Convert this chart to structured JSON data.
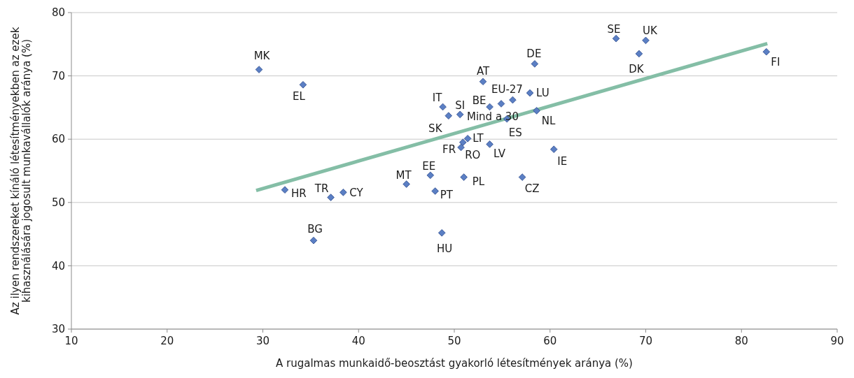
{
  "chart_data": {
    "type": "scatter",
    "xlabel": "A rugalmas munkaidő-beosztást gyakorló létesítmények aránya (%)",
    "ylabel": "Az ilyen rendszereket kínáló létesítményekben az ezek kihasználására jogosult munkavállalók aránya (%)",
    "xlim": [
      10,
      90
    ],
    "xticks": [
      10,
      20,
      30,
      40,
      50,
      60,
      70,
      80,
      90
    ],
    "ylim": [
      30,
      80
    ],
    "yticks": [
      30,
      40,
      50,
      60,
      70,
      80
    ],
    "grid": "y",
    "marker": "diamond",
    "series": [
      {
        "color": "#5b7fc4",
        "x": [
          29.6,
          34.2,
          32.3,
          37.1,
          38.4,
          35.3,
          45.0,
          47.5,
          48.0,
          48.7,
          51.0,
          48.8,
          49.4,
          50.6,
          53.7,
          54.9,
          56.1,
          55.5,
          57.9,
          58.6,
          58.4,
          51.4,
          50.9,
          50.7,
          53.7,
          60.4,
          57.1,
          66.9,
          70.0,
          69.3,
          82.6,
          53.0
        ],
        "values": [
          71.0,
          68.6,
          52.0,
          50.8,
          51.6,
          44.0,
          52.9,
          54.3,
          51.8,
          45.2,
          54.0,
          65.1,
          63.7,
          63.9,
          65.1,
          65.6,
          66.2,
          63.2,
          67.3,
          64.5,
          71.9,
          60.1,
          59.5,
          58.7,
          59.2,
          58.4,
          54.0,
          75.9,
          75.6,
          73.5,
          73.8,
          69.1
        ]
      },
      {
        "type": "line",
        "color": "#84bea6",
        "x": [
          29.3,
          82.7
        ],
        "values": [
          51.9,
          75.1
        ],
        "line_style": "solid",
        "marker": "none"
      }
    ],
    "annotations": [
      {
        "text": "MK",
        "x": 29.6,
        "y": 71.0
      },
      {
        "text": "EL",
        "x": 34.2,
        "y": 68.6
      },
      {
        "text": "HR",
        "x": 32.3,
        "y": 52.0
      },
      {
        "text": "TR",
        "x": 37.1,
        "y": 50.8
      },
      {
        "text": "CY",
        "x": 38.4,
        "y": 51.6
      },
      {
        "text": "BG",
        "x": 35.3,
        "y": 44.0
      },
      {
        "text": "MT",
        "x": 45.0,
        "y": 52.9
      },
      {
        "text": "EE",
        "x": 47.5,
        "y": 54.3
      },
      {
        "text": "PT",
        "x": 48.0,
        "y": 51.8
      },
      {
        "text": "HU",
        "x": 48.7,
        "y": 45.2
      },
      {
        "text": "PL",
        "x": 51.0,
        "y": 54.0
      },
      {
        "text": "IT",
        "x": 48.8,
        "y": 65.1
      },
      {
        "text": "SK",
        "x": 49.4,
        "y": 63.7
      },
      {
        "text": "SI",
        "x": 50.6,
        "y": 63.9
      },
      {
        "text": "BE",
        "x": 53.7,
        "y": 65.1
      },
      {
        "text": "Mind a 30",
        "x": 54.9,
        "y": 65.6
      },
      {
        "text": "EU-27",
        "x": 56.1,
        "y": 66.2
      },
      {
        "text": "ES",
        "x": 55.5,
        "y": 63.2
      },
      {
        "text": "LU",
        "x": 57.9,
        "y": 67.3
      },
      {
        "text": "NL",
        "x": 58.6,
        "y": 64.5
      },
      {
        "text": "DE",
        "x": 58.4,
        "y": 71.9
      },
      {
        "text": "LT",
        "x": 51.4,
        "y": 60.1
      },
      {
        "text": "RO",
        "x": 50.9,
        "y": 59.5
      },
      {
        "text": "FR",
        "x": 50.7,
        "y": 58.7
      },
      {
        "text": "LV",
        "x": 53.7,
        "y": 59.2
      },
      {
        "text": "IE",
        "x": 60.4,
        "y": 58.4
      },
      {
        "text": "CZ",
        "x": 57.1,
        "y": 54.0
      },
      {
        "text": "SE",
        "x": 66.9,
        "y": 75.9
      },
      {
        "text": "UK",
        "x": 70.0,
        "y": 75.6
      },
      {
        "text": "DK",
        "x": 69.3,
        "y": 73.5
      },
      {
        "text": "FI",
        "x": 82.6,
        "y": 73.8
      },
      {
        "text": "AT",
        "x": 53.0,
        "y": 69.1
      }
    ]
  }
}
